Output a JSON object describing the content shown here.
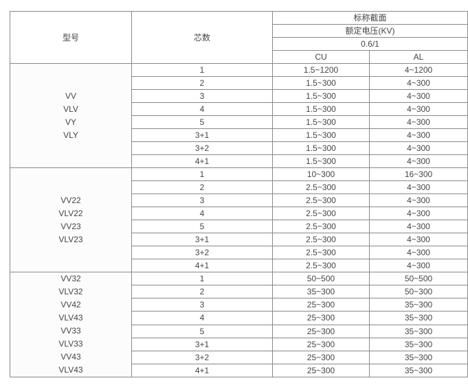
{
  "header": {
    "model": "型号",
    "cores": "芯数",
    "nominal_section": "标称截面",
    "rated_voltage": "额定电压(KV)",
    "voltage_value": "0.6/1",
    "cu": "CU",
    "al": "AL"
  },
  "groups": [
    {
      "models": [
        "VV",
        "VLV",
        "VY",
        "VLY"
      ],
      "rows": [
        {
          "cores": "1",
          "cu": "1.5~1200",
          "al": "4~1200"
        },
        {
          "cores": "2",
          "cu": "1.5~300",
          "al": "4~300"
        },
        {
          "cores": "3",
          "cu": "1.5~300",
          "al": "4~300"
        },
        {
          "cores": "4",
          "cu": "1.5~300",
          "al": "4~300"
        },
        {
          "cores": "5",
          "cu": "1.5~300",
          "al": "4~300"
        },
        {
          "cores": "3+1",
          "cu": "1.5~300",
          "al": "4~300"
        },
        {
          "cores": "3+2",
          "cu": "1.5~300",
          "al": "4~300"
        },
        {
          "cores": "4+1",
          "cu": "1.5~300",
          "al": "4~300"
        }
      ]
    },
    {
      "models": [
        "VV22",
        "VLV22",
        "VV23",
        "VLV23"
      ],
      "rows": [
        {
          "cores": "1",
          "cu": "10~300",
          "al": "16~300"
        },
        {
          "cores": "2",
          "cu": "2.5~300",
          "al": "4~300"
        },
        {
          "cores": "3",
          "cu": "2.5~300",
          "al": "4~300"
        },
        {
          "cores": "4",
          "cu": "2.5~300",
          "al": "4~300"
        },
        {
          "cores": "5",
          "cu": "2.5~300",
          "al": "4~300"
        },
        {
          "cores": "3+1",
          "cu": "2.5~300",
          "al": "4~300"
        },
        {
          "cores": "3+2",
          "cu": "2.5~300",
          "al": "4~300"
        },
        {
          "cores": "4+1",
          "cu": "2.5~300",
          "al": "4~300"
        }
      ]
    },
    {
      "models": [
        "VV32",
        "VLV32",
        "VV42",
        "VLV43",
        "VV33",
        "VLV33",
        "VV43",
        "VLV43"
      ],
      "rows": [
        {
          "cores": "1",
          "cu": "50~500",
          "al": "50~500"
        },
        {
          "cores": "2",
          "cu": "35~300",
          "al": "50~300"
        },
        {
          "cores": "3",
          "cu": "25~300",
          "al": "35~300"
        },
        {
          "cores": "4",
          "cu": "25~300",
          "al": "35~300"
        },
        {
          "cores": "5",
          "cu": "25~300",
          "al": "35~300"
        },
        {
          "cores": "3+1",
          "cu": "25~300",
          "al": "35~300"
        },
        {
          "cores": "3+2",
          "cu": "25~300",
          "al": "35~300"
        },
        {
          "cores": "4+1",
          "cu": "25~300",
          "al": "35~300"
        }
      ]
    }
  ]
}
